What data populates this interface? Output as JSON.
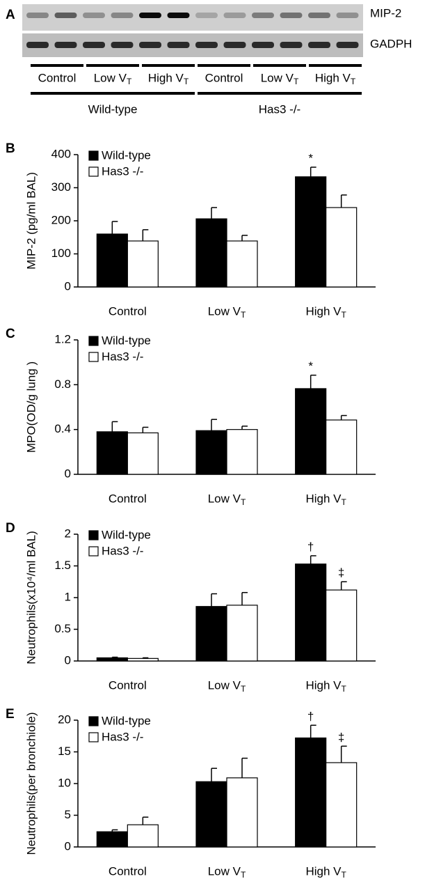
{
  "blot": {
    "panel": "A",
    "rows": [
      "MIP-2",
      "GADPH"
    ],
    "lanes": [
      "Control",
      "Low VT",
      "High VT",
      "Control",
      "Low VT",
      "High VT"
    ],
    "groups": [
      "Wild-type",
      "Has3 -/-"
    ]
  },
  "chart_data": [
    {
      "type": "bar",
      "panel": "B",
      "y_label": "MIP-2 (pg/ml BAL)",
      "categories": [
        "Control",
        "Low VT",
        "High VT"
      ],
      "series": [
        {
          "name": "Wild-type",
          "color": "#000000",
          "values": [
            160,
            206,
            333
          ],
          "errors": [
            38,
            34,
            29
          ],
          "markers": [
            null,
            null,
            "*"
          ]
        },
        {
          "name": "Has3 -/-",
          "color": "#ffffff",
          "values": [
            139,
            139,
            240
          ],
          "errors": [
            34,
            17,
            38
          ],
          "markers": [
            null,
            null,
            null
          ]
        }
      ],
      "ylim": [
        0,
        400
      ],
      "yticks": [
        0,
        100,
        200,
        300,
        400
      ],
      "legend": "upper-left"
    },
    {
      "type": "bar",
      "panel": "C",
      "y_label": "MPO(OD/g lung )",
      "categories": [
        "Control",
        "Low VT",
        "High VT"
      ],
      "series": [
        {
          "name": "Wild-type",
          "color": "#000000",
          "values": [
            0.38,
            0.39,
            0.765
          ],
          "errors": [
            0.09,
            0.1,
            0.12
          ],
          "markers": [
            null,
            null,
            "*"
          ]
        },
        {
          "name": "Has3 -/-",
          "color": "#ffffff",
          "values": [
            0.37,
            0.4,
            0.485
          ],
          "errors": [
            0.05,
            0.03,
            0.04
          ],
          "markers": [
            null,
            null,
            null
          ]
        }
      ],
      "ylim": [
        0,
        1.2
      ],
      "yticks": [
        0,
        0.4,
        0.8,
        1.2
      ],
      "legend": "upper-left"
    },
    {
      "type": "bar",
      "panel": "D",
      "y_label": "Neutrophils(x10⁴/ml BAL)",
      "categories": [
        "Control",
        "Low VT",
        "High VT"
      ],
      "series": [
        {
          "name": "Wild-type",
          "color": "#000000",
          "values": [
            0.05,
            0.86,
            1.53
          ],
          "errors": [
            0.01,
            0.2,
            0.13
          ],
          "markers": [
            null,
            null,
            "†"
          ]
        },
        {
          "name": "Has3 -/-",
          "color": "#ffffff",
          "values": [
            0.04,
            0.88,
            1.12
          ],
          "errors": [
            0.01,
            0.2,
            0.13
          ],
          "markers": [
            null,
            null,
            "‡"
          ]
        }
      ],
      "ylim": [
        0,
        2
      ],
      "yticks": [
        0,
        0.5,
        1,
        1.5,
        2
      ],
      "legend": "upper-left"
    },
    {
      "type": "bar",
      "panel": "E",
      "y_label": "Neutrophils(per bronchiole)",
      "categories": [
        "Control",
        "Low VT",
        "High VT"
      ],
      "series": [
        {
          "name": "Wild-type",
          "color": "#000000",
          "values": [
            2.4,
            10.3,
            17.2
          ],
          "errors": [
            0.3,
            2.1,
            2.0
          ],
          "markers": [
            null,
            null,
            "†"
          ]
        },
        {
          "name": "Has3 -/-",
          "color": "#ffffff",
          "values": [
            3.5,
            10.9,
            13.3
          ],
          "errors": [
            1.2,
            3.1,
            2.6
          ],
          "markers": [
            null,
            null,
            "‡"
          ]
        }
      ],
      "ylim": [
        0,
        20
      ],
      "yticks": [
        0,
        5,
        10,
        15,
        20
      ],
      "legend": "upper-left"
    }
  ]
}
